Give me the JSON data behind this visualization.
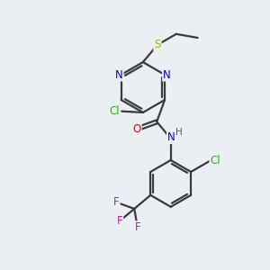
{
  "bg_color": "#eaeff3",
  "atom_colors": {
    "N": "#0000ee",
    "O": "#ee0000",
    "S": "#bbaa00",
    "Cl": "#22bb00",
    "F": "#dd00dd",
    "H": "#555555"
  },
  "bond_color": "#3a3a3a",
  "bond_width": 1.6,
  "dbo": 0.055,
  "fontsize": 8.5
}
